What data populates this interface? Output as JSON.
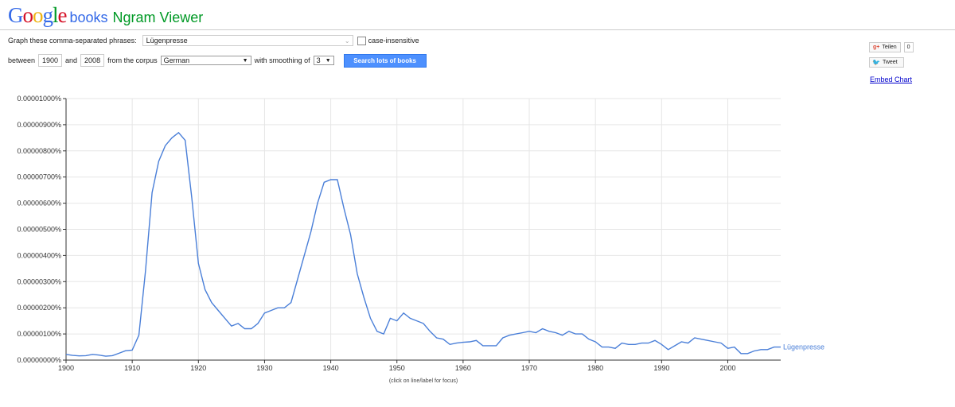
{
  "header": {
    "logo_letters": [
      "G",
      "o",
      "o",
      "g",
      "l",
      "e"
    ],
    "books": "books",
    "title": "Ngram Viewer"
  },
  "form": {
    "phrases_label": "Graph these comma-separated phrases:",
    "phrases_value": "Lügenpresse",
    "case_insensitive_label": "case-insensitive",
    "between_label": "between",
    "start_year": "1900",
    "and_label": "and",
    "end_year": "2008",
    "corpus_label": "from the corpus",
    "corpus_value": "German",
    "smoothing_label": "with smoothing of",
    "smoothing_value": "3",
    "search_button": "Search lots of books"
  },
  "social": {
    "share_label": "Teilen",
    "share_count": "0",
    "tweet_label": "Tweet",
    "embed_label": "Embed Chart"
  },
  "colors": {
    "line": "#4a7fd8",
    "grid": "#e6e6e6",
    "axis": "#333333"
  },
  "chart_data": {
    "type": "line",
    "xlim": [
      1900,
      2008
    ],
    "ylim": [
      0,
      1e-05
    ],
    "grid": true,
    "y_ticks": [
      0,
      1e-06,
      2e-06,
      3e-06,
      4e-06,
      5e-06,
      6e-06,
      7e-06,
      8e-06,
      9e-06,
      1e-05
    ],
    "y_tick_labels": [
      "0.00000000%",
      "0.00000100%",
      "0.00000200%",
      "0.00000300%",
      "0.00000400%",
      "0.00000500%",
      "0.00000600%",
      "0.00000700%",
      "0.00000800%",
      "0.00000900%",
      "0.00001000%"
    ],
    "x_ticks": [
      1900,
      1910,
      1920,
      1930,
      1940,
      1950,
      1960,
      1970,
      1980,
      1990,
      2000
    ],
    "x_tick_labels": [
      "1900",
      "1910",
      "1920",
      "1930",
      "1940",
      "1950",
      "1960",
      "1970",
      "1980",
      "1990",
      "2000"
    ],
    "footnote": "(click on line/label for focus)",
    "series": [
      {
        "name": "Lügenpresse",
        "x": [
          1900,
          1901,
          1902,
          1903,
          1904,
          1905,
          1906,
          1907,
          1908,
          1909,
          1910,
          1911,
          1912,
          1913,
          1914,
          1915,
          1916,
          1917,
          1918,
          1919,
          1920,
          1921,
          1922,
          1923,
          1924,
          1925,
          1926,
          1927,
          1928,
          1929,
          1930,
          1931,
          1932,
          1933,
          1934,
          1935,
          1936,
          1937,
          1938,
          1939,
          1940,
          1941,
          1942,
          1943,
          1944,
          1945,
          1946,
          1947,
          1948,
          1949,
          1950,
          1951,
          1952,
          1953,
          1954,
          1955,
          1956,
          1957,
          1958,
          1959,
          1960,
          1961,
          1962,
          1963,
          1964,
          1965,
          1966,
          1967,
          1968,
          1969,
          1970,
          1971,
          1972,
          1973,
          1974,
          1975,
          1976,
          1977,
          1978,
          1979,
          1980,
          1981,
          1982,
          1983,
          1984,
          1985,
          1986,
          1987,
          1988,
          1989,
          1990,
          1991,
          1992,
          1993,
          1994,
          1995,
          1996,
          1997,
          1998,
          1999,
          2000,
          2001,
          2002,
          2003,
          2004,
          2005,
          2006,
          2007,
          2008
        ],
        "y": [
          2.2e-07,
          1.8e-07,
          1.6e-07,
          1.7e-07,
          2.2e-07,
          1.9e-07,
          1.5e-07,
          1.7e-07,
          2.6e-07,
          3.6e-07,
          3.8e-07,
          9.5e-07,
          3.4e-06,
          6.4e-06,
          7.6e-06,
          8.2e-06,
          8.5e-06,
          8.7e-06,
          8.4e-06,
          6.2e-06,
          3.7e-06,
          2.7e-06,
          2.2e-06,
          1.9e-06,
          1.6e-06,
          1.3e-06,
          1.4e-06,
          1.2e-06,
          1.2e-06,
          1.4e-06,
          1.8e-06,
          1.9e-06,
          2e-06,
          2e-06,
          2.2e-06,
          3.1e-06,
          4e-06,
          4.9e-06,
          6e-06,
          6.8e-06,
          6.9e-06,
          6.9e-06,
          5.8e-06,
          4.8e-06,
          3.3e-06,
          2.4e-06,
          1.6e-06,
          1.1e-06,
          1e-06,
          1.6e-06,
          1.5e-06,
          1.8e-06,
          1.6e-06,
          1.5e-06,
          1.4e-06,
          1.1e-06,
          8.5e-07,
          8e-07,
          6e-07,
          6.5e-07,
          6.8e-07,
          7e-07,
          7.5e-07,
          5.5e-07,
          5.5e-07,
          5.5e-07,
          8.5e-07,
          9.5e-07,
          1e-06,
          1.05e-06,
          1.1e-06,
          1.05e-06,
          1.2e-06,
          1.1e-06,
          1.05e-06,
          9.5e-07,
          1.1e-06,
          1e-06,
          1e-06,
          8e-07,
          7e-07,
          5e-07,
          5e-07,
          4.5e-07,
          6.5e-07,
          6e-07,
          6e-07,
          6.5e-07,
          6.5e-07,
          7.5e-07,
          6e-07,
          4e-07,
          5.5e-07,
          7e-07,
          6.5e-07,
          8.5e-07,
          8e-07,
          7.5e-07,
          7e-07,
          6.5e-07,
          4.5e-07,
          5e-07,
          2.5e-07,
          2.5e-07,
          3.5e-07,
          4e-07,
          4e-07,
          5e-07,
          5e-07
        ]
      }
    ]
  }
}
